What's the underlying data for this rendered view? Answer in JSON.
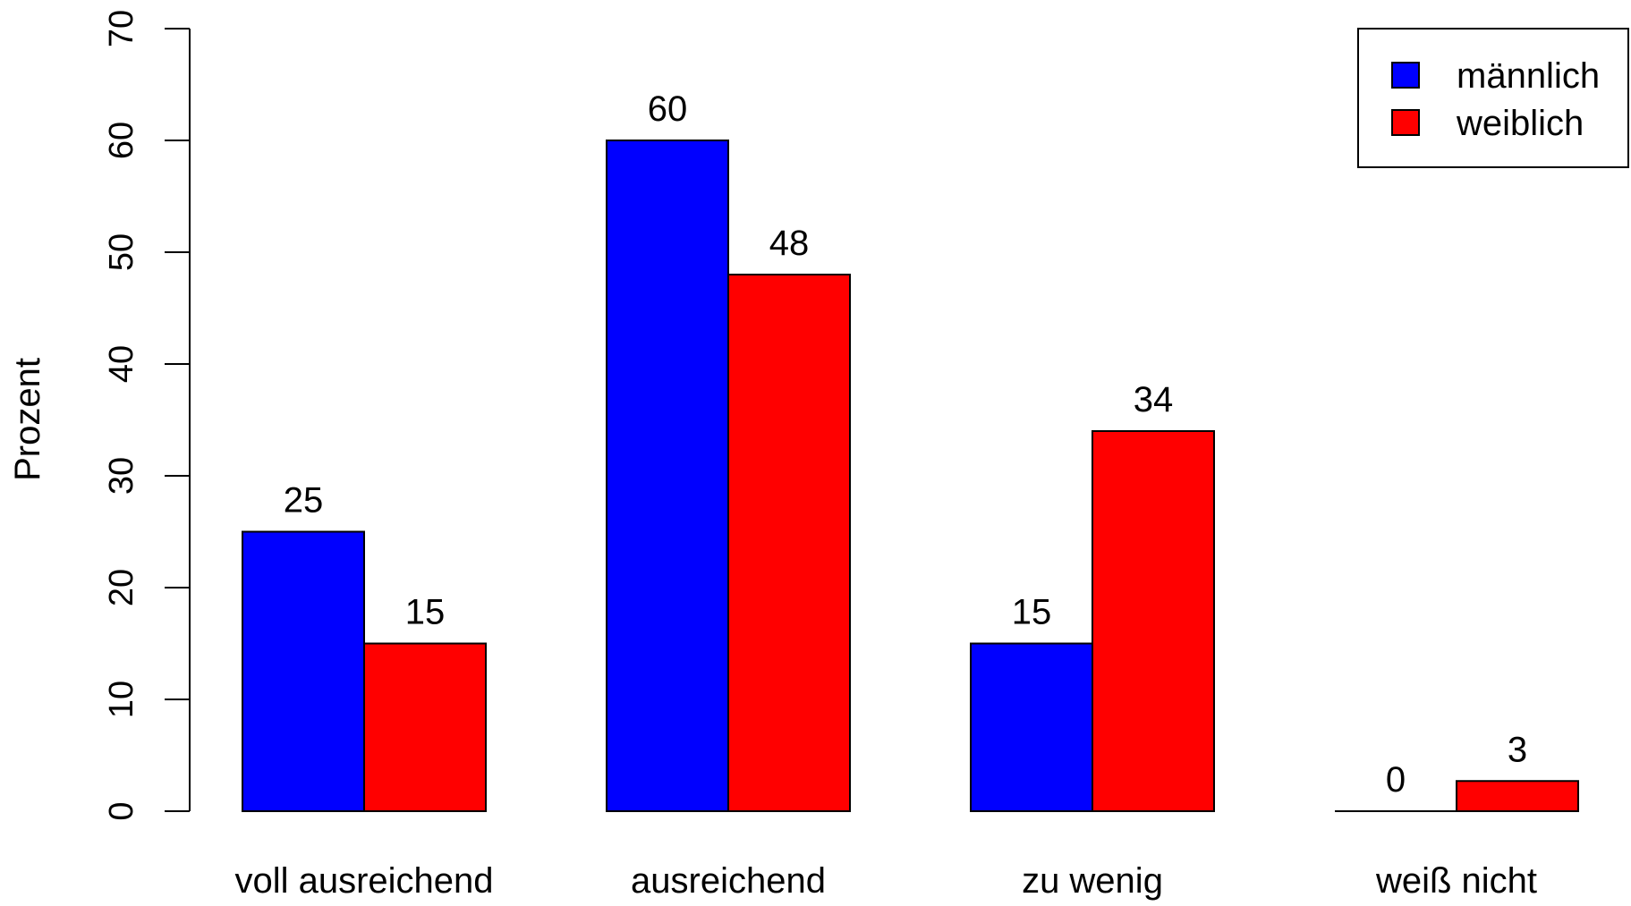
{
  "chart_data": {
    "type": "bar",
    "categories": [
      "voll ausreichend",
      "ausreichend",
      "zu wenig",
      "weiß nicht"
    ],
    "series": [
      {
        "name": "männlich",
        "color": "#0000FF",
        "values": [
          25,
          60,
          15,
          0
        ],
        "labels": [
          "25",
          "60",
          "15",
          "0"
        ]
      },
      {
        "name": "weiblich",
        "color": "#FF0000",
        "values": [
          15,
          48,
          34,
          2.7
        ],
        "labels": [
          "15",
          "48",
          "34",
          "3"
        ]
      }
    ],
    "ylabel": "Prozent",
    "ylim": [
      0,
      70
    ],
    "yticks": [
      "0",
      "10",
      "20",
      "30",
      "40",
      "50",
      "60",
      "70"
    ],
    "grid": false,
    "legend_position": "top-right"
  }
}
